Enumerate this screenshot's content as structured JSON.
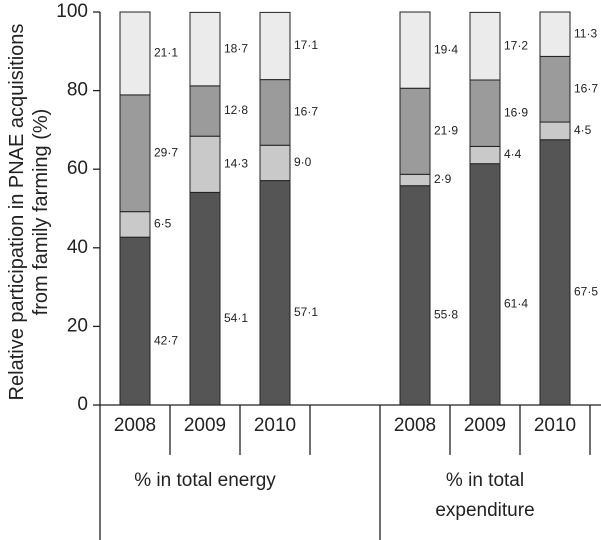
{
  "chart_data": {
    "type": "bar",
    "stacked": true,
    "y_label": "Relative participation in PNAE acquisitions from family farming (%)",
    "groups": [
      "% in total energy",
      "% in total expenditure"
    ],
    "categories": [
      "2008",
      "2009",
      "2010",
      "2008",
      "2009",
      "2010"
    ],
    "ylim": [
      0,
      100
    ],
    "yticks": [
      0,
      20,
      40,
      60,
      80,
      100
    ],
    "series": [
      {
        "color": "#555555",
        "values": [
          42.7,
          54.1,
          57.1,
          55.8,
          61.4,
          67.5
        ],
        "value_labels": [
          "42·7",
          "54·1",
          "57·1",
          "55·8",
          "61·4",
          "67·5"
        ]
      },
      {
        "color": "#c9c9c9",
        "values": [
          6.5,
          14.3,
          9.0,
          2.9,
          4.4,
          4.5
        ],
        "value_labels": [
          "6·5",
          "14·3",
          "9·0",
          "2·9",
          "4·4",
          "4·5"
        ]
      },
      {
        "color": "#9b9b9b",
        "values": [
          29.7,
          12.8,
          16.7,
          21.9,
          16.9,
          16.7
        ],
        "value_labels": [
          "29·7",
          "12·8",
          "16·7",
          "21·9",
          "16·9",
          "16·7"
        ]
      },
      {
        "color": "#ebebeb",
        "values": [
          21.1,
          18.7,
          17.1,
          19.4,
          17.2,
          11.3
        ],
        "value_labels": [
          "21·1",
          "18·7",
          "17·1",
          "19·4",
          "17·2",
          "11·3"
        ]
      }
    ]
  }
}
